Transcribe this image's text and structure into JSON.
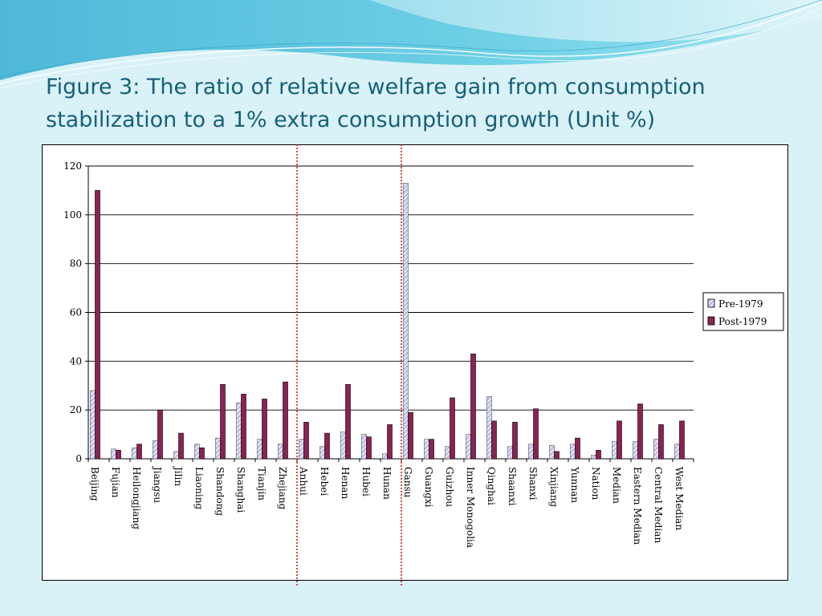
{
  "slide": {
    "title_line1": "Figure 3: The ratio of relative welfare gain from consumption",
    "title_line2": "stabilization to a 1% extra consumption growth (Unit %)"
  },
  "colors": {
    "background": "#d9f2f7",
    "title": "#17607a",
    "pre_fill": "#dde2f3",
    "pre_hatch": "#6f78b8",
    "post_fill": "#8b2252",
    "divider": "#cc0000"
  },
  "chart_data": {
    "type": "bar",
    "title": "",
    "xlabel": "",
    "ylabel": "",
    "ylim": [
      0,
      120
    ],
    "yticks": [
      0,
      20,
      40,
      60,
      80,
      100,
      120
    ],
    "grid": true,
    "legend_position": "right",
    "categories": [
      "Beijing",
      "Fujian",
      "Heilongjiang",
      "Jiangsu",
      "Jilin",
      "Liaoning",
      "Shandong",
      "Shanghai",
      "Tianjin",
      "Zhejiang",
      "Anhui",
      "Hebei",
      "Henan",
      "Hubei",
      "Hunan",
      "Gansu",
      "Guangxi",
      "Guizhou",
      "Inner Monogolia",
      "Qinghai",
      "Shaanxi",
      "Shanxi",
      "Xinjiang",
      "Yunnan",
      "Nation",
      "Median",
      "Eastern Median",
      "Central Median",
      "West Median"
    ],
    "series": [
      {
        "name": "Pre-1979",
        "values": [
          28,
          4,
          4.5,
          7.5,
          3,
          6,
          8.5,
          23,
          8,
          6,
          8,
          5,
          11,
          10,
          2,
          113,
          8,
          5,
          10,
          25.5,
          5,
          6,
          5.5,
          6,
          1.5,
          7,
          7,
          8,
          6
        ]
      },
      {
        "name": "Post-1979",
        "values": [
          110,
          3.5,
          6,
          20,
          10.5,
          4.5,
          30.5,
          26.5,
          24.5,
          31.5,
          15,
          10.5,
          30.5,
          9,
          14,
          19,
          8,
          25,
          43,
          15.5,
          15,
          20.5,
          3,
          8.5,
          3.5,
          15.5,
          22.5,
          14,
          15.5
        ]
      }
    ],
    "group_dividers_after": [
      "Zhejiang",
      "Hunan"
    ]
  }
}
